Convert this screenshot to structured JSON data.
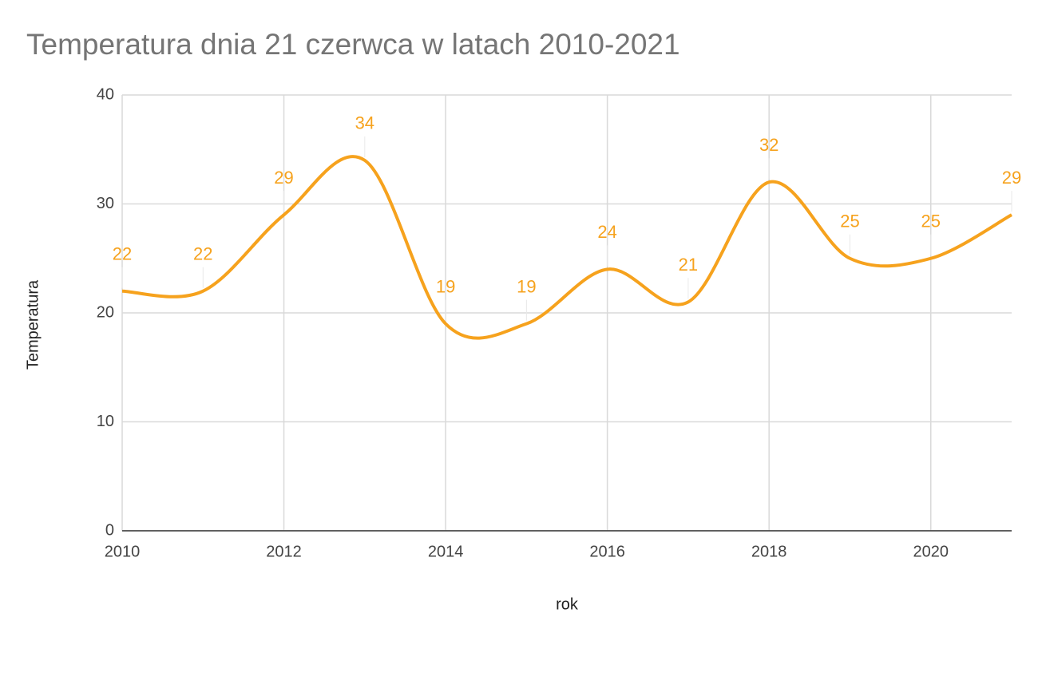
{
  "chart_data": {
    "type": "line",
    "title": "Temperatura dnia 21 czerwca w latach 2010-2021",
    "x_label": "rok",
    "y_label": "Temperatura",
    "x": [
      2010,
      2011,
      2012,
      2013,
      2014,
      2015,
      2016,
      2017,
      2018,
      2019,
      2020,
      2021
    ],
    "series": [
      {
        "name": "Temperatura",
        "color": "#f6a21d",
        "values": [
          22,
          22,
          29,
          34,
          19,
          19,
          24,
          21,
          32,
          25,
          25,
          29
        ]
      }
    ],
    "xlim": [
      2010,
      2021
    ],
    "xticks": [
      2010,
      2012,
      2014,
      2016,
      2018,
      2020
    ],
    "ylim": [
      0,
      40
    ],
    "yticks": [
      0,
      10,
      20,
      30,
      40
    ],
    "grid": true,
    "smooth": true
  }
}
